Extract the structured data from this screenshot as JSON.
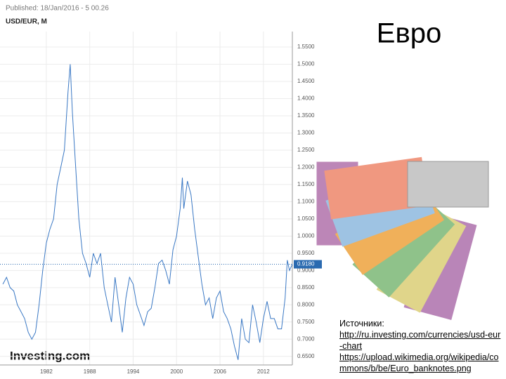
{
  "slide": {
    "title": "Евро",
    "sources_heading": "Источники:",
    "sources": [
      "http://ru.investing.com/currencies/usd-eur-chart",
      "https://upload.wikimedia.org/wikipedia/commons/b/be/Euro_banknotes.png"
    ]
  },
  "chart_data": {
    "type": "line",
    "title": "USD/EUR, M",
    "subtitle": "Published: 18/Jan/2016 - 5 00.26",
    "source_logo": "Investing.com",
    "x": [
      1976.0,
      1976.5,
      1977.0,
      1977.5,
      1978.0,
      1978.5,
      1979.0,
      1979.5,
      1980.0,
      1980.5,
      1981.0,
      1981.5,
      1982.0,
      1982.5,
      1983.0,
      1983.5,
      1984.0,
      1984.5,
      1985.0,
      1985.3,
      1985.6,
      1986.0,
      1986.5,
      1987.0,
      1987.5,
      1988.0,
      1988.5,
      1989.0,
      1989.5,
      1990.0,
      1990.5,
      1991.0,
      1991.5,
      1992.0,
      1992.5,
      1993.0,
      1993.5,
      1994.0,
      1994.5,
      1995.0,
      1995.5,
      1996.0,
      1996.5,
      1997.0,
      1997.5,
      1998.0,
      1998.5,
      1999.0,
      1999.5,
      2000.0,
      2000.5,
      2000.8,
      2001.0,
      2001.5,
      2002.0,
      2002.5,
      2003.0,
      2003.5,
      2004.0,
      2004.5,
      2005.0,
      2005.5,
      2006.0,
      2006.5,
      2007.0,
      2007.5,
      2008.0,
      2008.5,
      2009.0,
      2009.5,
      2010.0,
      2010.5,
      2011.0,
      2011.5,
      2012.0,
      2012.5,
      2013.0,
      2013.5,
      2014.0,
      2014.5,
      2015.0,
      2015.3,
      2015.6,
      2016.0
    ],
    "series": [
      {
        "name": "USD/EUR",
        "color": "#3a78c4",
        "values": [
          0.86,
          0.88,
          0.85,
          0.84,
          0.8,
          0.78,
          0.76,
          0.72,
          0.7,
          0.72,
          0.8,
          0.9,
          0.98,
          1.02,
          1.05,
          1.15,
          1.2,
          1.25,
          1.42,
          1.5,
          1.36,
          1.22,
          1.05,
          0.95,
          0.92,
          0.88,
          0.95,
          0.92,
          0.95,
          0.85,
          0.8,
          0.75,
          0.88,
          0.8,
          0.72,
          0.82,
          0.88,
          0.86,
          0.8,
          0.77,
          0.74,
          0.78,
          0.79,
          0.85,
          0.92,
          0.93,
          0.9,
          0.86,
          0.96,
          1.0,
          1.08,
          1.17,
          1.08,
          1.16,
          1.12,
          1.02,
          0.94,
          0.86,
          0.8,
          0.82,
          0.76,
          0.82,
          0.84,
          0.78,
          0.76,
          0.73,
          0.68,
          0.64,
          0.76,
          0.7,
          0.69,
          0.8,
          0.75,
          0.69,
          0.76,
          0.81,
          0.76,
          0.76,
          0.73,
          0.73,
          0.82,
          0.93,
          0.9,
          0.918
        ]
      }
    ],
    "current_value": {
      "value": 0.918,
      "label": "0.9180"
    },
    "xlim": [
      1975.6,
      2016.0
    ],
    "xticks": [
      1982,
      1988,
      1994,
      2000,
      2006,
      2012
    ],
    "ylim": [
      0.625,
      1.595
    ],
    "yticks": [
      {
        "value": 0.65,
        "label": "0.6500"
      },
      {
        "value": 0.7,
        "label": "0.7000"
      },
      {
        "value": 0.75,
        "label": "0.7500"
      },
      {
        "value": 0.8,
        "label": "0.8000"
      },
      {
        "value": 0.85,
        "label": "0.8500"
      },
      {
        "value": 0.9,
        "label": "0.9000"
      },
      {
        "value": 0.95,
        "label": "0.9500"
      },
      {
        "value": 1.0,
        "label": "1.0000"
      },
      {
        "value": 1.05,
        "label": "1.0500"
      },
      {
        "value": 1.1,
        "label": "1.1000"
      },
      {
        "value": 1.15,
        "label": "1.1500"
      },
      {
        "value": 1.2,
        "label": "1.2000"
      },
      {
        "value": 1.25,
        "label": "1.2500"
      },
      {
        "value": 1.3,
        "label": "1.3000"
      },
      {
        "value": 1.35,
        "label": "1.3500"
      },
      {
        "value": 1.4,
        "label": "1.4000"
      },
      {
        "value": 1.45,
        "label": "1.4500"
      },
      {
        "value": 1.5,
        "label": "1.5000"
      },
      {
        "value": 1.55,
        "label": "1.5500"
      }
    ],
    "grid": true
  }
}
